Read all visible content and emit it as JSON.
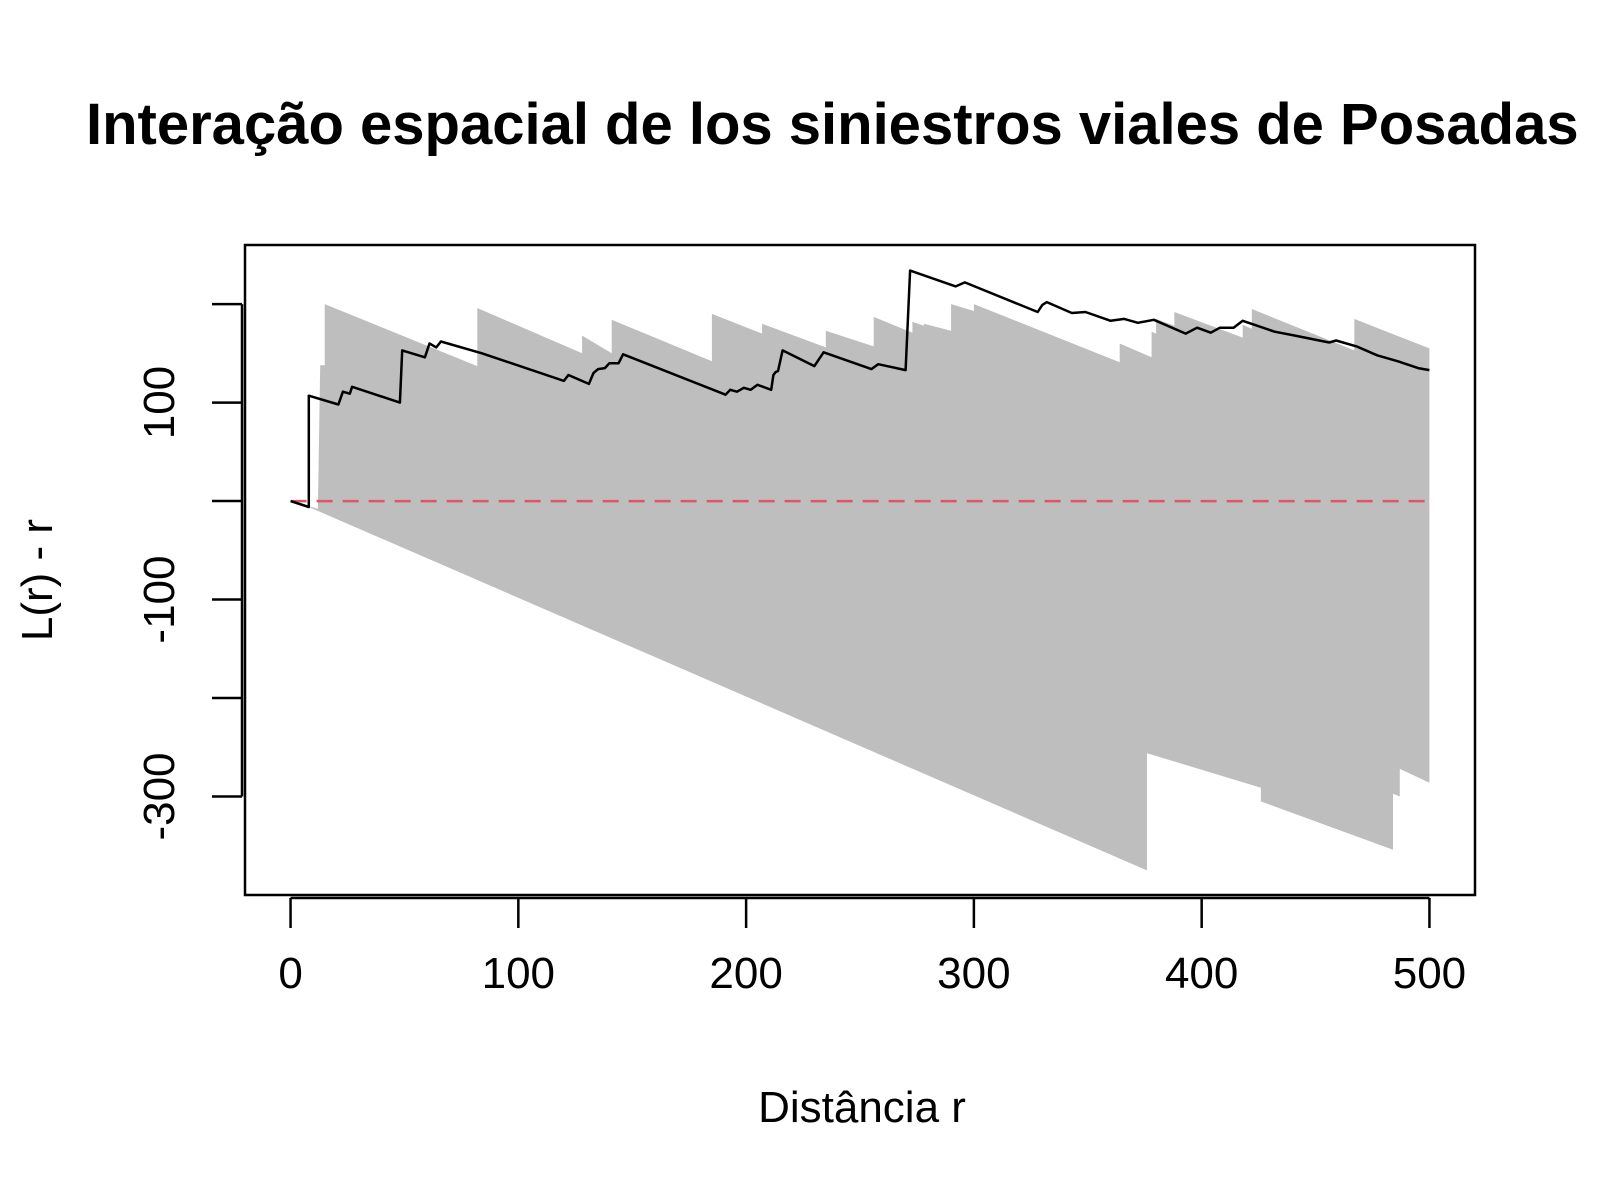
{
  "chart_data": {
    "type": "line",
    "title": "Interação espacial de los siniestros viales de Posadas",
    "xlabel": "Distância r",
    "ylabel": "L(r) - r",
    "xlim": [
      -20,
      520
    ],
    "ylim": [
      -400,
      260
    ],
    "x_ticks": [
      0,
      100,
      200,
      300,
      400,
      500
    ],
    "x_tick_labels": [
      "0",
      "100",
      "200",
      "300",
      "400",
      "500"
    ],
    "y_ticks": [
      -300,
      -200,
      -100,
      0,
      100,
      200
    ],
    "y_tick_labels": [
      "-300",
      "",
      "-100",
      "",
      "100",
      ""
    ],
    "grid": false,
    "legend": "none",
    "series": [
      {
        "kind": "envelope-band",
        "color": "#bebebe",
        "upper": [
          [
            0,
            0
          ],
          [
            12,
            -8
          ],
          [
            13,
            138
          ],
          [
            15,
            138
          ],
          [
            15,
            200
          ],
          [
            82,
            137
          ],
          [
            82,
            196
          ],
          [
            128,
            150
          ],
          [
            128,
            168
          ],
          [
            141,
            150
          ],
          [
            141,
            184
          ],
          [
            185,
            142
          ],
          [
            185,
            190
          ],
          [
            207,
            170
          ],
          [
            207,
            180
          ],
          [
            235,
            156
          ],
          [
            235,
            173
          ],
          [
            256,
            157
          ],
          [
            256,
            187
          ],
          [
            273,
            171
          ],
          [
            273,
            182
          ],
          [
            278,
            178
          ],
          [
            278,
            180
          ],
          [
            290,
            173
          ],
          [
            290,
            200
          ],
          [
            300,
            193
          ],
          [
            300,
            200
          ],
          [
            364,
            141
          ],
          [
            364,
            160
          ],
          [
            378,
            146
          ],
          [
            378,
            172
          ],
          [
            380,
            170
          ],
          [
            380,
            185
          ],
          [
            388,
            178
          ],
          [
            388,
            192
          ],
          [
            418,
            166
          ],
          [
            418,
            179
          ],
          [
            422,
            175
          ],
          [
            422,
            195
          ],
          [
            467,
            153
          ],
          [
            467,
            185
          ],
          [
            500,
            155
          ]
        ],
        "lower": [
          [
            500,
            -286
          ],
          [
            487,
            -272
          ],
          [
            487,
            -300
          ],
          [
            484,
            -297
          ],
          [
            484,
            -354
          ],
          [
            426,
            -305
          ],
          [
            426,
            -291
          ],
          [
            376,
            -256
          ],
          [
            376,
            -375
          ],
          [
            9,
            -7
          ],
          [
            0,
            0
          ]
        ]
      },
      {
        "kind": "theoretical",
        "name": "",
        "color": "#df536b",
        "dash": true,
        "points": [
          [
            0,
            0
          ],
          [
            500,
            0
          ]
        ]
      },
      {
        "kind": "observed",
        "name": "",
        "color": "#000000",
        "points": [
          [
            0,
            0
          ],
          [
            8,
            -6
          ],
          [
            8,
            107
          ],
          [
            21,
            98
          ],
          [
            21,
            98
          ],
          [
            23,
            111
          ],
          [
            26,
            109
          ],
          [
            27,
            116
          ],
          [
            48,
            100
          ],
          [
            49,
            153
          ],
          [
            59,
            146
          ],
          [
            61,
            160
          ],
          [
            64,
            156
          ],
          [
            66,
            162
          ],
          [
            84,
            150
          ],
          [
            120,
            122
          ],
          [
            122,
            128
          ],
          [
            131,
            119
          ],
          [
            133,
            130
          ],
          [
            135,
            134
          ],
          [
            138,
            135
          ],
          [
            140,
            140
          ],
          [
            144,
            140
          ],
          [
            146,
            149
          ],
          [
            191,
            108
          ],
          [
            193,
            113
          ],
          [
            196,
            111
          ],
          [
            199,
            115
          ],
          [
            202,
            113
          ],
          [
            205,
            118
          ],
          [
            211,
            113
          ],
          [
            212,
            128
          ],
          [
            213,
            131
          ],
          [
            214,
            132
          ],
          [
            216,
            153
          ],
          [
            230,
            137
          ],
          [
            234,
            151
          ],
          [
            255,
            134
          ],
          [
            258,
            139
          ],
          [
            270,
            133
          ],
          [
            272,
            234
          ],
          [
            292,
            218
          ],
          [
            296,
            222
          ],
          [
            328,
            192
          ],
          [
            330,
            199
          ],
          [
            332,
            202
          ],
          [
            343,
            191
          ],
          [
            349,
            192
          ],
          [
            360,
            183
          ],
          [
            366,
            185
          ],
          [
            372,
            181
          ],
          [
            379,
            184
          ],
          [
            393,
            170
          ],
          [
            398,
            176
          ],
          [
            404,
            171
          ],
          [
            408,
            176
          ],
          [
            414,
            176
          ],
          [
            418,
            183
          ],
          [
            432,
            172
          ],
          [
            441,
            168
          ],
          [
            456,
            161
          ],
          [
            459,
            163
          ],
          [
            468,
            157
          ],
          [
            477,
            148
          ],
          [
            486,
            142
          ],
          [
            495,
            135
          ],
          [
            500,
            133
          ]
        ]
      }
    ]
  }
}
